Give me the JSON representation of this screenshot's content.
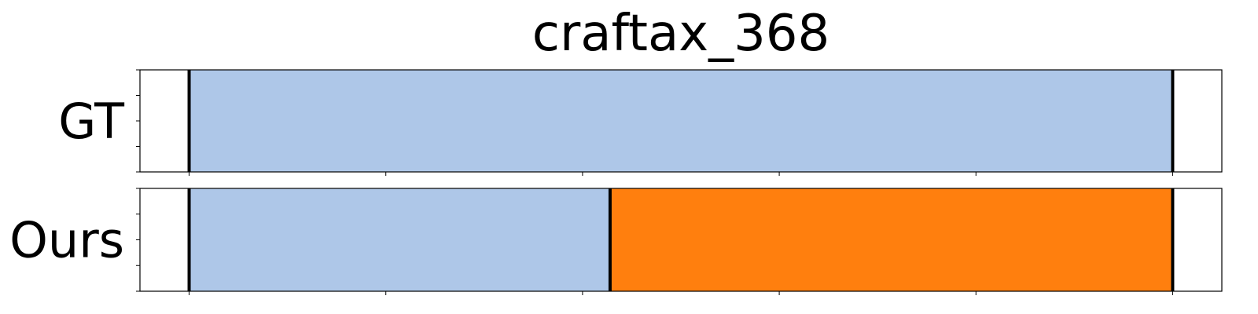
{
  "chart_data": {
    "type": "bar",
    "title": "craftax_368",
    "xlim": [
      0,
      5.5
    ],
    "rows": [
      {
        "label": "GT",
        "segments": [
          {
            "start": 0.25,
            "end": 5.25,
            "color": "#aec7e8"
          }
        ],
        "boundaries": [
          0.25,
          5.25
        ]
      },
      {
        "label": "Ours",
        "segments": [
          {
            "start": 0.25,
            "end": 2.39,
            "color": "#aec7e8"
          },
          {
            "start": 2.39,
            "end": 5.25,
            "color": "#ff7f0e"
          }
        ],
        "boundaries": [
          0.25,
          2.39,
          5.25
        ]
      }
    ],
    "x_ticks": [
      0.25,
      1.25,
      2.25,
      3.25,
      4.25,
      5.25
    ],
    "tick_labels_visible": false,
    "grid": false
  }
}
